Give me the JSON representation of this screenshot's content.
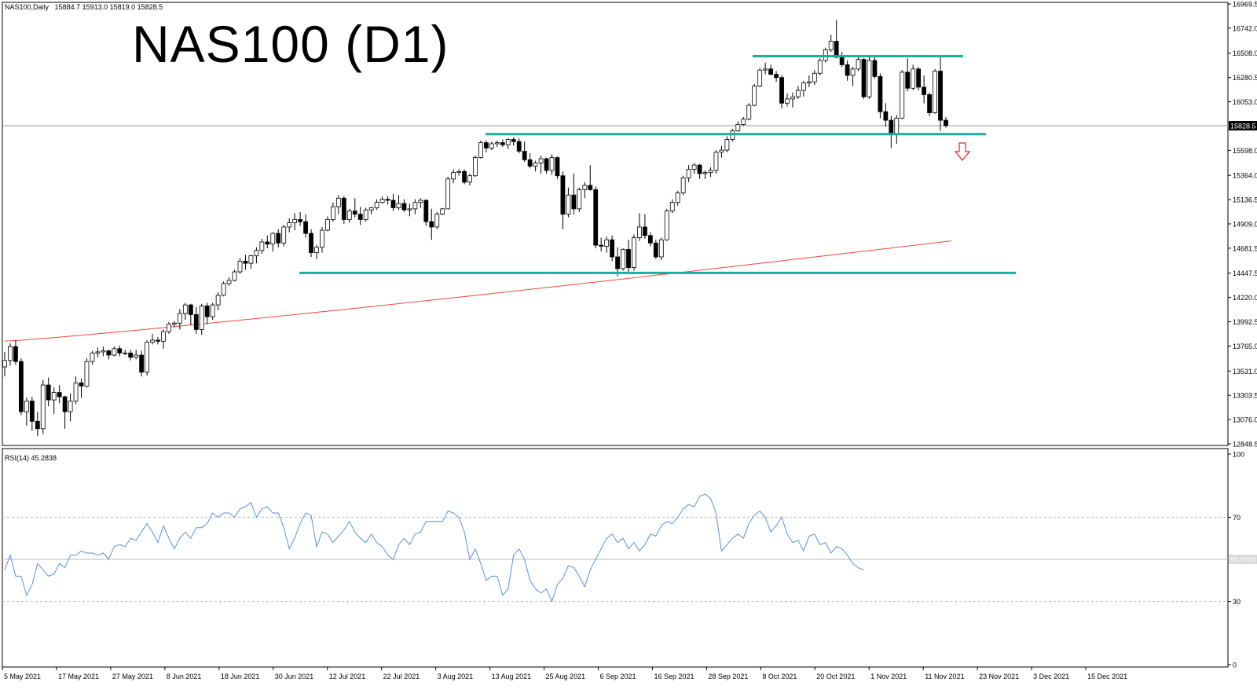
{
  "header": {
    "symbol_info": "NAS100,Daily",
    "ohlc": "15884.7 15913.0 15819.0 15828.5",
    "title": "NAS100 (D1)"
  },
  "colors": {
    "bull": "#ffffff",
    "bear": "#000000",
    "wick": "#000000",
    "levels": "#17b0a0",
    "ma": "#f0483c",
    "rsi": "#5b8fe0",
    "arrow": "#e8241c",
    "grid_dashed": "#bbbbbb"
  },
  "price_axis": {
    "ticks": [
      "16969.5",
      "16742.0",
      "16508.0",
      "16280.5",
      "16053.0",
      "15598.0",
      "15364.0",
      "15136.5",
      "14909.0",
      "14681.5",
      "14447.5",
      "14220.0",
      "13992.5",
      "13765.0",
      "13531.0",
      "13303.5",
      "13076.0",
      "12848.5"
    ],
    "current_label": "15828.5"
  },
  "rsi_panel": {
    "label": "RSI(14) 45.2838",
    "ticks": [
      "100",
      "70",
      "30",
      "0"
    ],
    "level_label": "50.0000"
  },
  "x_axis": {
    "dates": [
      "5 May 2021",
      "17 May 2021",
      "27 May 2021",
      "8 Jun 2021",
      "18 Jun 2021",
      "30 Jun 2021",
      "12 Jul 2021",
      "22 Jul 2021",
      "3 Aug 2021",
      "13 Aug 2021",
      "25 Aug 2021",
      "6 Sep 2021",
      "16 Sep 2021",
      "28 Sep 2021",
      "8 Oct 2021",
      "20 Oct 2021",
      "1 Nov 2021",
      "11 Nov 2021",
      "23 Nov 2021",
      "3 Dec 2021",
      "15 Dec 2021"
    ]
  },
  "chart_data": [
    {
      "type": "candlestick",
      "symbol": "NAS100",
      "timeframe": "Daily",
      "title": "NAS100 (D1)",
      "ylim": [
        12848.5,
        16969.5
      ],
      "candles": [
        [
          13570,
          13710,
          13480,
          13630
        ],
        [
          13630,
          13790,
          13580,
          13760
        ],
        [
          13760,
          13820,
          13590,
          13620
        ],
        [
          13620,
          13650,
          13120,
          13150
        ],
        [
          13150,
          13280,
          13020,
          13250
        ],
        [
          13250,
          13290,
          12970,
          13060
        ],
        [
          13060,
          13150,
          12920,
          12990
        ],
        [
          12990,
          13450,
          12940,
          13400
        ],
        [
          13400,
          13470,
          13200,
          13260
        ],
        [
          13260,
          13380,
          13130,
          13330
        ],
        [
          13330,
          13400,
          13230,
          13290
        ],
        [
          13290,
          13300,
          12990,
          13150
        ],
        [
          13150,
          13320,
          13060,
          13250
        ],
        [
          13250,
          13480,
          13220,
          13420
        ],
        [
          13420,
          13460,
          13280,
          13390
        ],
        [
          13390,
          13650,
          13380,
          13620
        ],
        [
          13620,
          13720,
          13590,
          13700
        ],
        [
          13700,
          13750,
          13660,
          13710
        ],
        [
          13710,
          13760,
          13670,
          13720
        ],
        [
          13720,
          13730,
          13640,
          13680
        ],
        [
          13680,
          13760,
          13670,
          13740
        ],
        [
          13740,
          13770,
          13670,
          13700
        ],
        [
          13700,
          13730,
          13680,
          13700
        ],
        [
          13700,
          13730,
          13630,
          13660
        ],
        [
          13660,
          13730,
          13640,
          13680
        ],
        [
          13680,
          13720,
          13480,
          13520
        ],
        [
          13520,
          13820,
          13490,
          13800
        ],
        [
          13800,
          13880,
          13780,
          13820
        ],
        [
          13820,
          13850,
          13780,
          13810
        ],
        [
          13810,
          13920,
          13740,
          13900
        ],
        [
          13900,
          13990,
          13880,
          13970
        ],
        [
          13970,
          14000,
          13940,
          13980
        ],
        [
          13980,
          14110,
          13920,
          14070
        ],
        [
          14070,
          14170,
          14010,
          14150
        ],
        [
          14150,
          14160,
          13960,
          14060
        ],
        [
          14060,
          14130,
          13880,
          13920
        ],
        [
          13920,
          14160,
          13870,
          14140
        ],
        [
          14140,
          14170,
          13970,
          14040
        ],
        [
          14040,
          14170,
          14010,
          14150
        ],
        [
          14150,
          14270,
          14100,
          14240
        ],
        [
          14240,
          14370,
          14230,
          14350
        ],
        [
          14350,
          14410,
          14330,
          14380
        ],
        [
          14380,
          14480,
          14370,
          14460
        ],
        [
          14460,
          14590,
          14440,
          14560
        ],
        [
          14560,
          14620,
          14480,
          14540
        ],
        [
          14540,
          14620,
          14490,
          14610
        ],
        [
          14610,
          14690,
          14540,
          14660
        ],
        [
          14660,
          14770,
          14630,
          14740
        ],
        [
          14740,
          14800,
          14680,
          14720
        ],
        [
          14720,
          14830,
          14650,
          14820
        ],
        [
          14820,
          14860,
          14690,
          14730
        ],
        [
          14730,
          14900,
          14700,
          14880
        ],
        [
          14880,
          14960,
          14830,
          14920
        ],
        [
          14920,
          15010,
          14850,
          14950
        ],
        [
          14950,
          15020,
          14890,
          14930
        ],
        [
          14930,
          15000,
          14780,
          14820
        ],
        [
          14820,
          14860,
          14600,
          14640
        ],
        [
          14640,
          14710,
          14580,
          14690
        ],
        [
          14690,
          14880,
          14640,
          14850
        ],
        [
          14850,
          14980,
          14840,
          14950
        ],
        [
          14950,
          15110,
          14930,
          15070
        ],
        [
          15070,
          15180,
          15000,
          15150
        ],
        [
          15150,
          15170,
          14910,
          14950
        ],
        [
          14950,
          15050,
          14920,
          15030
        ],
        [
          15030,
          15150,
          14970,
          15000
        ],
        [
          15000,
          15070,
          14900,
          14950
        ],
        [
          14950,
          15060,
          14930,
          15040
        ],
        [
          15040,
          15070,
          15000,
          15060
        ],
        [
          15060,
          15140,
          15040,
          15110
        ],
        [
          15110,
          15170,
          15100,
          15140
        ],
        [
          15140,
          15170,
          15090,
          15130
        ],
        [
          15130,
          15190,
          15030,
          15060
        ],
        [
          15060,
          15180,
          15040,
          15100
        ],
        [
          15100,
          15140,
          15020,
          15040
        ],
        [
          15040,
          15100,
          14980,
          15050
        ],
        [
          15050,
          15140,
          15000,
          15110
        ],
        [
          15110,
          15150,
          15060,
          15130
        ],
        [
          15130,
          15140,
          14890,
          14930
        ],
        [
          14930,
          15050,
          14760,
          14880
        ],
        [
          14880,
          15020,
          14860,
          15000
        ],
        [
          15000,
          15060,
          14990,
          15050
        ],
        [
          15050,
          15350,
          15050,
          15330
        ],
        [
          15330,
          15420,
          15290,
          15390
        ],
        [
          15390,
          15420,
          15360,
          15400
        ],
        [
          15400,
          15420,
          15280,
          15300
        ],
        [
          15300,
          15380,
          15270,
          15360
        ],
        [
          15360,
          15550,
          15350,
          15530
        ],
        [
          15530,
          15690,
          15520,
          15670
        ],
        [
          15670,
          15690,
          15580,
          15620
        ],
        [
          15620,
          15680,
          15600,
          15660
        ],
        [
          15660,
          15690,
          15630,
          15670
        ],
        [
          15670,
          15700,
          15630,
          15650
        ],
        [
          15650,
          15710,
          15610,
          15700
        ],
        [
          15700,
          15720,
          15640,
          15680
        ],
        [
          15680,
          15710,
          15570,
          15590
        ],
        [
          15590,
          15680,
          15490,
          15510
        ],
        [
          15510,
          15570,
          15430,
          15450
        ],
        [
          15450,
          15500,
          15400,
          15480
        ],
        [
          15480,
          15550,
          15380,
          15520
        ],
        [
          15520,
          15530,
          15380,
          15410
        ],
        [
          15410,
          15560,
          15370,
          15530
        ],
        [
          15530,
          15540,
          15330,
          15360
        ],
        [
          15360,
          15400,
          14860,
          15000
        ],
        [
          15000,
          15250,
          14970,
          15180
        ],
        [
          15180,
          15380,
          15000,
          15050
        ],
        [
          15050,
          15250,
          15020,
          15230
        ],
        [
          15230,
          15300,
          15150,
          15270
        ],
        [
          15270,
          15460,
          15220,
          15230
        ],
        [
          15230,
          15260,
          14680,
          14710
        ],
        [
          14710,
          14780,
          14650,
          14700
        ],
        [
          14700,
          14790,
          14640,
          14760
        ],
        [
          14760,
          14800,
          14560,
          14600
        ],
        [
          14600,
          14690,
          14420,
          14490
        ],
        [
          14490,
          14680,
          14470,
          14670
        ],
        [
          14670,
          14760,
          14460,
          14500
        ],
        [
          14500,
          14810,
          14470,
          14780
        ],
        [
          14780,
          15010,
          14750,
          14880
        ],
        [
          14880,
          15000,
          14770,
          14800
        ],
        [
          14800,
          14830,
          14700,
          14730
        ],
        [
          14730,
          14760,
          14580,
          14600
        ],
        [
          14600,
          14780,
          14570,
          14760
        ],
        [
          14760,
          15050,
          14750,
          15030
        ],
        [
          15030,
          15140,
          15010,
          15110
        ],
        [
          15110,
          15220,
          15080,
          15200
        ],
        [
          15200,
          15360,
          15180,
          15340
        ],
        [
          15340,
          15460,
          15300,
          15420
        ],
        [
          15420,
          15480,
          15380,
          15460
        ],
        [
          15460,
          15470,
          15330,
          15380
        ],
        [
          15380,
          15410,
          15330,
          15390
        ],
        [
          15390,
          15440,
          15350,
          15410
        ],
        [
          15410,
          15600,
          15380,
          15580
        ],
        [
          15580,
          15640,
          15530,
          15600
        ],
        [
          15600,
          15730,
          15580,
          15700
        ],
        [
          15700,
          15800,
          15680,
          15780
        ],
        [
          15780,
          15870,
          15770,
          15840
        ],
        [
          15840,
          15910,
          15830,
          15890
        ],
        [
          15890,
          16040,
          15880,
          16020
        ],
        [
          16020,
          16220,
          16010,
          16200
        ],
        [
          16200,
          16370,
          16190,
          16350
        ],
        [
          16350,
          16420,
          16310,
          16360
        ],
        [
          16360,
          16400,
          16300,
          16310
        ],
        [
          16310,
          16340,
          16240,
          16280
        ],
        [
          16280,
          16300,
          15990,
          16040
        ],
        [
          16040,
          16130,
          16010,
          16080
        ],
        [
          16080,
          16140,
          16000,
          16100
        ],
        [
          16100,
          16200,
          16080,
          16160
        ],
        [
          16160,
          16250,
          16100,
          16230
        ],
        [
          16230,
          16300,
          16190,
          16240
        ],
        [
          16240,
          16350,
          16210,
          16320
        ],
        [
          16320,
          16460,
          16300,
          16440
        ],
        [
          16440,
          16560,
          16420,
          16540
        ],
        [
          16540,
          16680,
          16520,
          16620
        ],
        [
          16620,
          16820,
          16460,
          16470
        ],
        [
          16470,
          16520,
          16380,
          16400
        ],
        [
          16400,
          16440,
          16250,
          16300
        ],
        [
          16300,
          16380,
          16200,
          16360
        ],
        [
          16360,
          16480,
          16340,
          16450
        ],
        [
          16450,
          16460,
          16080,
          16100
        ],
        [
          16100,
          16470,
          16080,
          16440
        ],
        [
          16440,
          16480,
          16270,
          16290
        ],
        [
          16290,
          16320,
          15900,
          15960
        ],
        [
          15960,
          16040,
          15820,
          15880
        ],
        [
          15880,
          15920,
          15620,
          15750
        ],
        [
          15750,
          15930,
          15660,
          15900
        ],
        [
          15900,
          16350,
          15890,
          16330
        ],
        [
          16330,
          16460,
          16150,
          16180
        ],
        [
          16180,
          16400,
          16160,
          16360
        ],
        [
          16360,
          16380,
          16160,
          16190
        ],
        [
          16190,
          16300,
          16040,
          16120
        ],
        [
          16120,
          16140,
          15920,
          15950
        ],
        [
          15950,
          16360,
          15940,
          16340
        ],
        [
          16340,
          16480,
          15780,
          15880
        ],
        [
          15880,
          15910,
          15810,
          15830
        ]
      ],
      "moving_average": {
        "name": "",
        "start": 13810,
        "end": 14750
      },
      "levels": [
        {
          "price": 16480
        },
        {
          "price": 15750
        },
        {
          "price": 14450
        }
      ],
      "signal": "down"
    },
    {
      "type": "line",
      "title": "RSI(14) 45.2838",
      "ylim": [
        0,
        100
      ],
      "levels": [
        70,
        50,
        30
      ],
      "values": [
        45,
        52,
        42,
        42,
        33,
        38,
        48,
        45,
        42,
        43,
        48,
        46,
        52,
        52,
        54,
        53,
        53,
        52,
        53,
        50,
        56,
        57,
        56,
        60,
        59,
        63,
        67,
        63,
        58,
        66,
        60,
        55,
        60,
        63,
        60,
        65,
        65,
        67,
        72,
        70,
        72,
        72,
        70,
        74,
        75,
        77,
        70,
        74,
        75,
        72,
        72,
        65,
        55,
        60,
        67,
        72,
        71,
        56,
        63,
        62,
        58,
        61,
        64,
        68,
        63,
        60,
        58,
        62,
        58,
        56,
        52,
        50,
        57,
        60,
        57,
        62,
        63,
        68,
        68,
        68,
        68,
        73,
        72,
        70,
        63,
        50,
        55,
        48,
        40,
        42,
        42,
        33,
        36,
        52,
        55,
        50,
        40,
        36,
        34,
        36,
        30,
        38,
        41,
        47,
        46,
        42,
        37,
        45,
        50,
        55,
        60,
        62,
        58,
        60,
        55,
        58,
        54,
        57,
        62,
        61,
        66,
        68,
        67,
        70,
        74,
        76,
        75,
        80,
        81,
        79,
        72,
        54,
        57,
        60,
        62,
        60,
        67,
        71,
        73,
        70,
        63,
        66,
        70,
        62,
        58,
        59,
        54,
        61,
        62,
        57,
        58,
        53,
        56,
        55,
        52,
        48,
        46,
        45
      ]
    }
  ]
}
